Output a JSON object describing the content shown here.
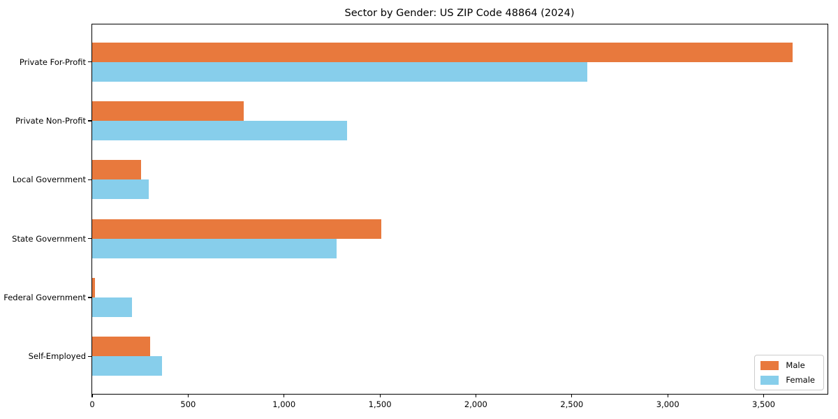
{
  "title": "Sector by Gender: US ZIP Code 48864 (2024)",
  "chart_data": {
    "type": "bar",
    "orientation": "horizontal",
    "title": "Sector by Gender: US ZIP Code 48864 (2024)",
    "categories": [
      "Private For-Profit",
      "Private Non-Profit",
      "Local Government",
      "State Government",
      "Federal Government",
      "Self-Employed"
    ],
    "series": [
      {
        "name": "Male",
        "color": "#e8793d",
        "values": [
          3650,
          790,
          255,
          1505,
          13,
          302
        ]
      },
      {
        "name": "Female",
        "color": "#87ceeb",
        "values": [
          2580,
          1330,
          295,
          1275,
          207,
          364
        ]
      }
    ],
    "xlim": [
      0,
      3833
    ],
    "x_ticks": [
      0,
      500,
      1000,
      1500,
      2000,
      2500,
      3000,
      3500
    ],
    "x_tick_labels": [
      "0",
      "500",
      "1,000",
      "1,500",
      "2,000",
      "2,500",
      "3,000",
      "3,500"
    ],
    "xlabel": "",
    "ylabel": "",
    "grid": false,
    "legend_position": "lower right",
    "legend_labels": [
      "Male",
      "Female"
    ],
    "colors": {
      "male": "#e8793d",
      "female": "#87ceeb",
      "spine": "#000000",
      "background": "#ffffff",
      "legend_border": "#cccccc"
    }
  }
}
